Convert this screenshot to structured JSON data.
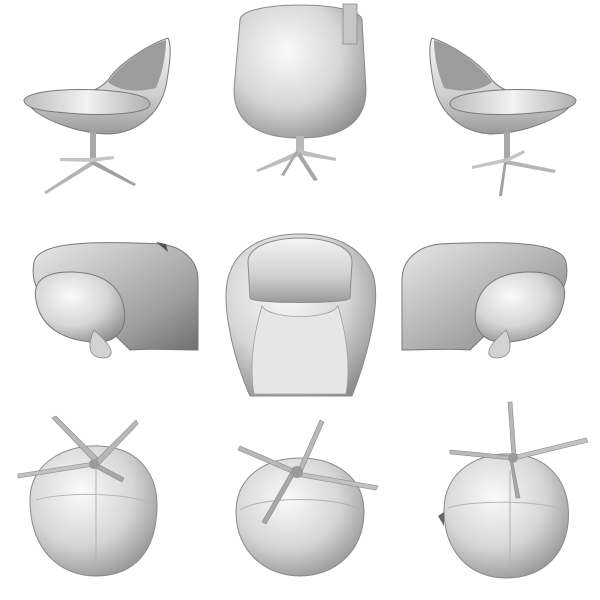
{
  "figure": {
    "views": [
      {
        "id": "side-left",
        "label": ""
      },
      {
        "id": "back",
        "label": ""
      },
      {
        "id": "side-right",
        "label": ""
      },
      {
        "id": "top-left",
        "label": ""
      },
      {
        "id": "top",
        "label": ""
      },
      {
        "id": "top-right",
        "label": ""
      },
      {
        "id": "bottom-left",
        "label": ""
      },
      {
        "id": "bottom",
        "label": ""
      },
      {
        "id": "bottom-right",
        "label": ""
      }
    ],
    "colors": {
      "background": "#ffffff",
      "surface_light": "#f2f2f2",
      "surface_mid": "#c8c8c8",
      "surface_dark": "#8a8a8a",
      "outline": "#6e6e6e"
    }
  }
}
